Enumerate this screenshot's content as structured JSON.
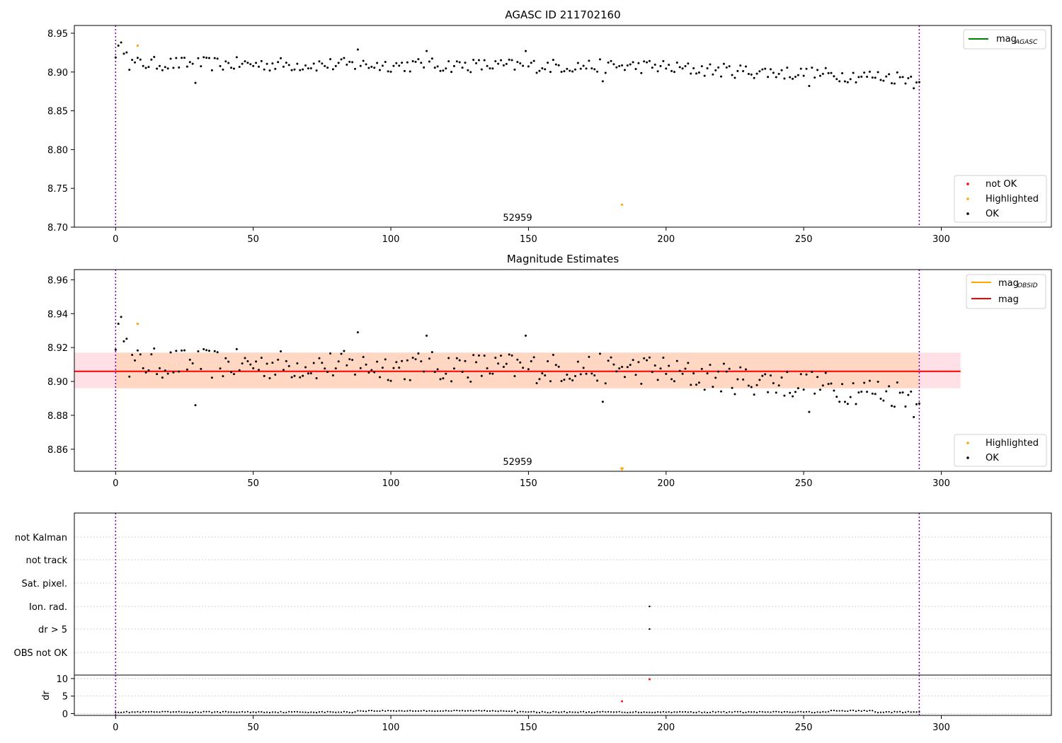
{
  "colors": {
    "ok": "#000000",
    "not_ok": "#ff0000",
    "highlighted": "#ffa500",
    "vline": "#7b00a6",
    "mag_line": "#ff0000",
    "mag_obsid": "#ffa500",
    "mag_agasc": "#008000",
    "band_outer": "#ffe0e6",
    "band_inner": "#ffd7c2"
  },
  "chart_data": [
    {
      "type": "scatter",
      "title": "AGASC ID 211702160",
      "xlim": [
        -15,
        340
      ],
      "ylim": [
        8.7,
        8.96
      ],
      "xticks": [
        0,
        50,
        100,
        150,
        200,
        250,
        300
      ],
      "yticks": [
        8.7,
        8.75,
        8.8,
        8.85,
        8.9,
        8.95
      ],
      "ytick_labels": [
        "8.70",
        "8.75",
        "8.80",
        "8.85",
        "8.90",
        "8.95"
      ],
      "vlines": [
        0,
        292
      ],
      "annotation": {
        "text": "52959",
        "x": 146
      },
      "legends": [
        {
          "position": "upper-right",
          "entries": [
            {
              "label": "mag",
              "subscript": "AGASC",
              "style": "line",
              "color": "#008000"
            }
          ]
        },
        {
          "position": "lower-right",
          "entries": [
            {
              "label": "not OK",
              "style": "dot",
              "color": "#ff0000"
            },
            {
              "label": "Highlighted",
              "style": "dot",
              "color": "#ffa500"
            },
            {
              "label": "OK",
              "style": "dot",
              "color": "#000000"
            }
          ]
        }
      ],
      "highlighted_points": [
        [
          8,
          8.934
        ],
        [
          184,
          8.729
        ]
      ]
    },
    {
      "type": "scatter",
      "title": "Magnitude Estimates",
      "xlim": [
        -15,
        340
      ],
      "ylim": [
        8.847,
        8.966
      ],
      "xticks": [
        0,
        50,
        100,
        150,
        200,
        250,
        300
      ],
      "yticks": [
        8.86,
        8.88,
        8.9,
        8.92,
        8.94,
        8.96
      ],
      "ytick_labels": [
        "8.86",
        "8.88",
        "8.90",
        "8.92",
        "8.94",
        "8.96"
      ],
      "vlines": [
        0,
        292
      ],
      "annotation": {
        "text": "52959",
        "x": 146
      },
      "mag": 8.906,
      "mag_band_outer": [
        8.896,
        8.917
      ],
      "mag_band_inner": [
        8.896,
        8.917
      ],
      "band_x_range": [
        -15,
        307
      ],
      "legends": [
        {
          "position": "upper-right",
          "entries": [
            {
              "label": "mag",
              "subscript": "OBSID",
              "style": "line",
              "color": "#ffa500"
            },
            {
              "label": "mag",
              "style": "line",
              "color": "#ff0000"
            }
          ]
        },
        {
          "position": "lower-right",
          "entries": [
            {
              "label": "Highlighted",
              "style": "dot",
              "color": "#ffa500"
            },
            {
              "label": "OK",
              "style": "dot",
              "color": "#000000"
            }
          ]
        }
      ],
      "highlighted_points": [
        [
          8,
          8.934
        ]
      ],
      "marker_points": [
        [
          184,
          8.848
        ]
      ]
    },
    {
      "type": "scatter",
      "title": "",
      "xlim": [
        -15,
        340
      ],
      "vlines": [
        0,
        292
      ],
      "flag_categories": [
        "not Kalman",
        "not track",
        "Sat. pixel.",
        "Ion. rad.",
        "dr > 5",
        "OBS not OK"
      ],
      "flag_points": [
        {
          "category": "Ion. rad.",
          "x": 194
        },
        {
          "category": "dr > 5",
          "x": 194
        }
      ]
    },
    {
      "type": "scatter",
      "title": "",
      "xlim": [
        -15,
        340
      ],
      "ylim": [
        -0.5,
        11
      ],
      "xticks": [
        0,
        50,
        100,
        150,
        200,
        250,
        300
      ],
      "yticks": [
        0,
        5,
        10
      ],
      "ytick_labels": [
        "0",
        "5",
        "10"
      ],
      "ylabel": "dr",
      "vlines": [
        0,
        292
      ],
      "outliers": [
        [
          184,
          3.5,
          "#ff0000"
        ],
        [
          194,
          9.8,
          "#ff0000"
        ]
      ]
    }
  ]
}
